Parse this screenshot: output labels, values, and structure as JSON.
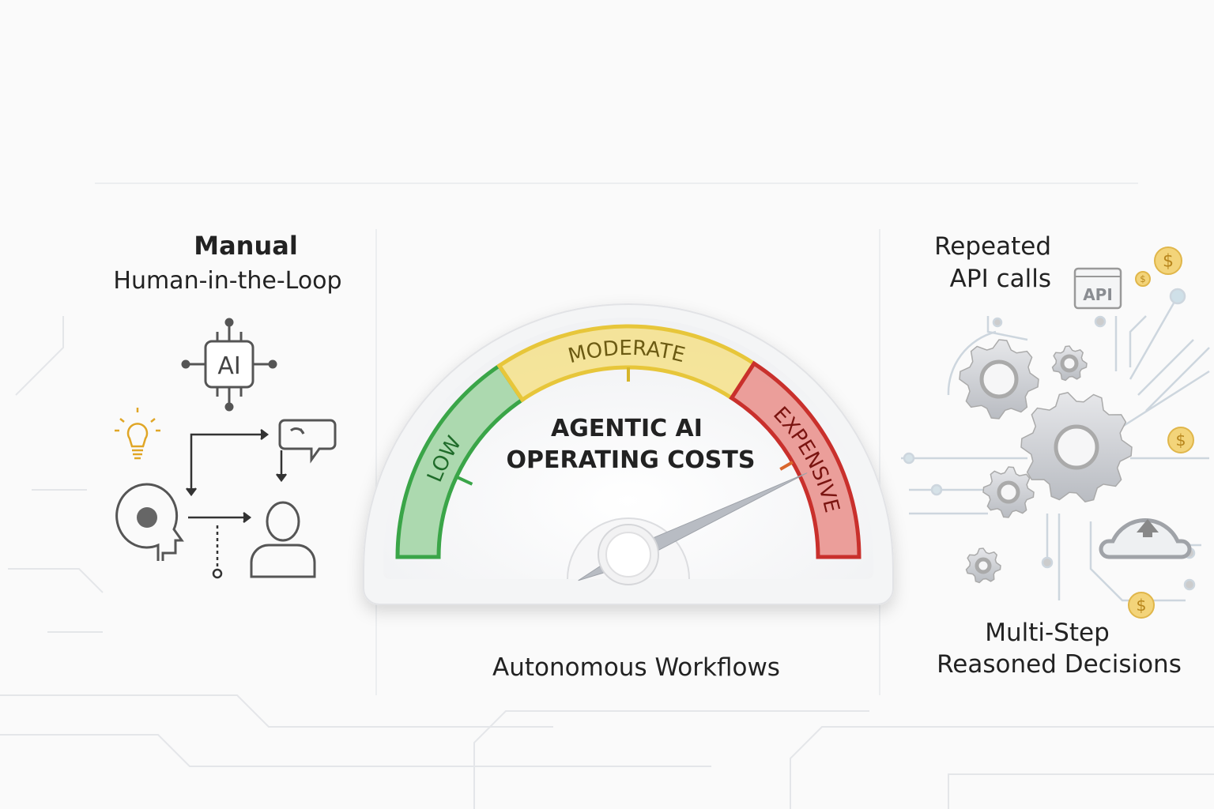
{
  "left": {
    "title": "Manual",
    "subtitle": "Human-in-the-Loop",
    "chip_label": "AI"
  },
  "gauge": {
    "title_line1": "AGENTIC AI",
    "title_line2": "OPERATING COSTS",
    "zones": [
      {
        "label": "LOW",
        "color": "#3aa548"
      },
      {
        "label": "MODERATE",
        "color": "#e7c63a"
      },
      {
        "label": "EXPENSIVE",
        "color": "#c9302c"
      }
    ],
    "needle_level": 0.86,
    "caption": "Autonomous Workflows"
  },
  "right": {
    "top_line1": "Repeated",
    "top_line2": "API calls",
    "api_label": "API",
    "coin_symbol": "$",
    "bottom_line1": "Multi-Step",
    "bottom_line2": "Reasoned Decisions"
  }
}
